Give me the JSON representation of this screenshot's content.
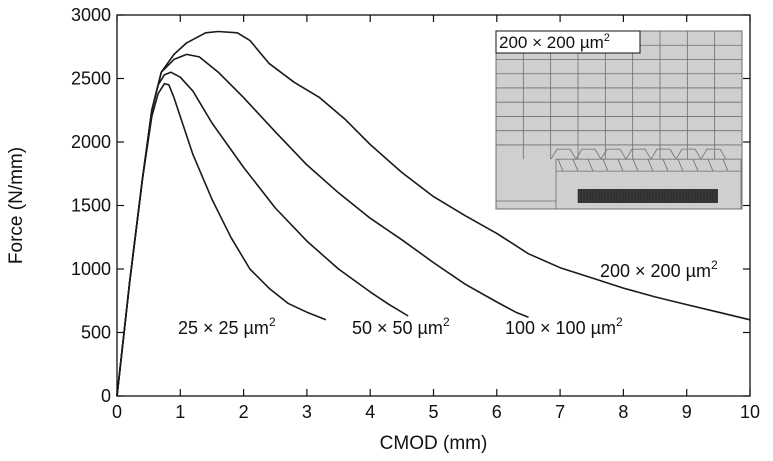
{
  "chart_data": {
    "type": "line",
    "title": "",
    "xlabel": "CMOD (mm)",
    "ylabel": "Force (N/mm)",
    "xlim": [
      0,
      10
    ],
    "ylim": [
      0,
      3000
    ],
    "x_ticks": [
      "0",
      "1",
      "2",
      "3",
      "4",
      "5",
      "6",
      "7",
      "8",
      "9",
      "10"
    ],
    "y_ticks": [
      "0",
      "500",
      "1000",
      "1500",
      "2000",
      "2500",
      "3000"
    ],
    "grid": false,
    "legend": "none",
    "line_color": "#1a1a1a",
    "series": [
      {
        "name": "25 × 25 µm²",
        "label_prefix": "25 × 25 µm",
        "label_sup": "2",
        "points": [
          [
            0,
            0
          ],
          [
            0.2,
            900
          ],
          [
            0.4,
            1700
          ],
          [
            0.55,
            2200
          ],
          [
            0.65,
            2380
          ],
          [
            0.75,
            2460
          ],
          [
            0.82,
            2450
          ],
          [
            0.9,
            2350
          ],
          [
            1.0,
            2200
          ],
          [
            1.2,
            1900
          ],
          [
            1.5,
            1550
          ],
          [
            1.8,
            1250
          ],
          [
            2.1,
            1000
          ],
          [
            2.4,
            850
          ],
          [
            2.7,
            730
          ],
          [
            3.0,
            660
          ],
          [
            3.3,
            600
          ]
        ]
      },
      {
        "name": "50 × 50 µm²",
        "label_prefix": "50 × 50 µm",
        "label_sup": "2",
        "points": [
          [
            0,
            0
          ],
          [
            0.2,
            900
          ],
          [
            0.4,
            1700
          ],
          [
            0.55,
            2250
          ],
          [
            0.65,
            2450
          ],
          [
            0.75,
            2530
          ],
          [
            0.85,
            2550
          ],
          [
            1.0,
            2510
          ],
          [
            1.2,
            2400
          ],
          [
            1.5,
            2150
          ],
          [
            2.0,
            1800
          ],
          [
            2.5,
            1480
          ],
          [
            3.0,
            1220
          ],
          [
            3.5,
            1000
          ],
          [
            4.0,
            820
          ],
          [
            4.3,
            720
          ],
          [
            4.6,
            630
          ]
        ]
      },
      {
        "name": "100 × 100 µm²",
        "label_prefix": "100 × 100 µm",
        "label_sup": "2",
        "points": [
          [
            0,
            0
          ],
          [
            0.2,
            900
          ],
          [
            0.4,
            1700
          ],
          [
            0.55,
            2250
          ],
          [
            0.7,
            2550
          ],
          [
            0.9,
            2650
          ],
          [
            1.1,
            2690
          ],
          [
            1.3,
            2670
          ],
          [
            1.6,
            2550
          ],
          [
            2.0,
            2350
          ],
          [
            2.5,
            2080
          ],
          [
            3.0,
            1820
          ],
          [
            3.5,
            1600
          ],
          [
            4.0,
            1400
          ],
          [
            4.5,
            1230
          ],
          [
            5.0,
            1050
          ],
          [
            5.5,
            880
          ],
          [
            6.0,
            740
          ],
          [
            6.3,
            660
          ],
          [
            6.5,
            620
          ]
        ]
      },
      {
        "name": "200 × 200 µm²",
        "label_prefix": "200 × 200 µm",
        "label_sup": "2",
        "points": [
          [
            0,
            0
          ],
          [
            0.2,
            900
          ],
          [
            0.4,
            1700
          ],
          [
            0.55,
            2250
          ],
          [
            0.7,
            2550
          ],
          [
            0.9,
            2690
          ],
          [
            1.1,
            2780
          ],
          [
            1.4,
            2860
          ],
          [
            1.6,
            2870
          ],
          [
            1.9,
            2860
          ],
          [
            2.1,
            2800
          ],
          [
            2.4,
            2620
          ],
          [
            2.8,
            2470
          ],
          [
            3.2,
            2350
          ],
          [
            3.6,
            2180
          ],
          [
            4.0,
            1980
          ],
          [
            4.5,
            1760
          ],
          [
            5.0,
            1570
          ],
          [
            5.5,
            1420
          ],
          [
            6.0,
            1280
          ],
          [
            6.5,
            1120
          ],
          [
            7.0,
            1010
          ],
          [
            7.5,
            930
          ],
          [
            8.0,
            850
          ],
          [
            8.5,
            780
          ],
          [
            9.0,
            720
          ],
          [
            9.5,
            660
          ],
          [
            10.0,
            600
          ]
        ]
      }
    ],
    "inset": {
      "label_prefix": "200 × 200 µm",
      "label_sup": "2",
      "fill": "#cfcfcf",
      "mesh_color": "#6e6e6e",
      "dense_color": "#3a3a3a"
    }
  }
}
